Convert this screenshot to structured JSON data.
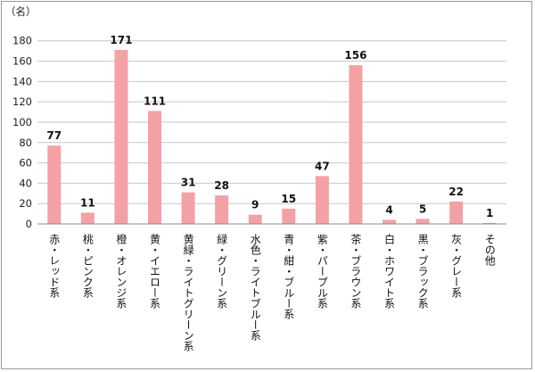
{
  "chart_data": {
    "type": "bar",
    "unit_label": "（名）",
    "categories": [
      "赤・レッド系",
      "桃・ピンク系",
      "橙・オレンジ系",
      "黄・イエロー系",
      "黄緑・ライトグリーン系",
      "緑・グリーン系",
      "水色・ライトブルー系",
      "青・紺・ブルー系",
      "紫・パープル系",
      "茶・ブラウン系",
      "白・ホワイト系",
      "黒・ブラック系",
      "灰・グレー系",
      "その他"
    ],
    "values": [
      77,
      11,
      171,
      111,
      31,
      28,
      9,
      15,
      47,
      156,
      4,
      5,
      22,
      1
    ],
    "y_ticks": [
      "0",
      "20",
      "40",
      "60",
      "80",
      "100",
      "120",
      "140",
      "160",
      "180"
    ],
    "ylim": [
      0,
      180
    ],
    "grid": true,
    "bar_color": "#f4a1a6",
    "grid_color": "#c8c8c8"
  }
}
